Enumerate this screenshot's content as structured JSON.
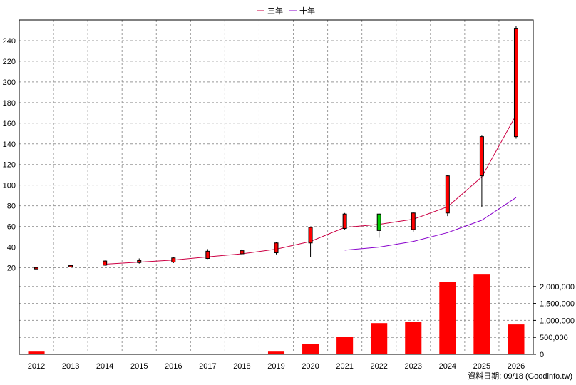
{
  "chart_data": {
    "type": "candlestick+line+bar",
    "legend": {
      "placement": "top-center",
      "items": [
        {
          "label": "三年",
          "color": "#cc0044"
        },
        {
          "label": "十年",
          "color": "#8800cc"
        }
      ]
    },
    "years": [
      "2012",
      "2013",
      "2014",
      "2015",
      "2016",
      "2017",
      "2018",
      "2019",
      "2020",
      "2021",
      "2022",
      "2023",
      "2024",
      "2025",
      "2026"
    ],
    "price_axis": {
      "ylim": [
        10,
        260
      ],
      "ticks": [
        20,
        40,
        60,
        80,
        100,
        120,
        140,
        160,
        180,
        200,
        220,
        240
      ]
    },
    "volume_axis": {
      "ylim": [
        0,
        2500000
      ],
      "ticks": [
        0,
        500000,
        1000000,
        1500000,
        2000000
      ],
      "tick_labels": [
        "0",
        "500,000",
        "1,000,000",
        "1,500,000",
        "2,000,000"
      ]
    },
    "candles": [
      {
        "x": "2012",
        "open": 19.5,
        "close": 20.2,
        "high": 20.5,
        "low": 19.0
      },
      {
        "x": "2013",
        "open": 21.5,
        "close": 22.2,
        "high": 22.6,
        "low": 21.0
      },
      {
        "x": "2014",
        "open": 22.5,
        "close": 26.5,
        "high": 27.0,
        "low": 22.0
      },
      {
        "x": "2015",
        "open": 25.0,
        "close": 27.0,
        "high": 29.0,
        "low": 24.0
      },
      {
        "x": "2016",
        "open": 25.5,
        "close": 29.5,
        "high": 30.5,
        "low": 24.5
      },
      {
        "x": "2017",
        "open": 29.0,
        "close": 36.0,
        "high": 38.0,
        "low": 28.5
      },
      {
        "x": "2018",
        "open": 33.5,
        "close": 36.5,
        "high": 38.0,
        "low": 32.0
      },
      {
        "x": "2019",
        "open": 34.5,
        "close": 44.0,
        "high": 44.5,
        "low": 33.0
      },
      {
        "x": "2020",
        "open": 44.0,
        "close": 59.0,
        "high": 59.5,
        "low": 30.5
      },
      {
        "x": "2021",
        "open": 58.0,
        "close": 72.0,
        "high": 73.0,
        "low": 57.0
      },
      {
        "x": "2022",
        "open": 72.0,
        "close": 56.0,
        "high": 72.5,
        "low": 49.0
      },
      {
        "x": "2023",
        "open": 57.0,
        "close": 73.0,
        "high": 73.5,
        "low": 55.0
      },
      {
        "x": "2024",
        "open": 73.0,
        "close": 109.0,
        "high": 110.0,
        "low": 70.0
      },
      {
        "x": "2025",
        "open": 109.0,
        "close": 147.0,
        "high": 148.0,
        "low": 79.0
      },
      {
        "x": "2026",
        "open": 147.0,
        "close": 252.0,
        "high": 254.0,
        "low": 145.0
      }
    ],
    "series": [
      {
        "name": "三年",
        "x": [
          "2014",
          "2015",
          "2016",
          "2017",
          "2018",
          "2019",
          "2020",
          "2021",
          "2022",
          "2023",
          "2024",
          "2025",
          "2026"
        ],
        "values": [
          23.5,
          25.5,
          27.5,
          30.5,
          33.5,
          38.0,
          45.5,
          59.0,
          62.0,
          67.0,
          79.0,
          108.0,
          168.0
        ]
      },
      {
        "name": "十年",
        "x": [
          "2021",
          "2022",
          "2023",
          "2024",
          "2025",
          "2026"
        ],
        "values": [
          37.0,
          40.0,
          45.5,
          54.0,
          66.0,
          88.0
        ]
      }
    ],
    "volume": [
      {
        "x": "2012",
        "value": 80000
      },
      {
        "x": "2013",
        "value": 0
      },
      {
        "x": "2014",
        "value": 0
      },
      {
        "x": "2015",
        "value": 0
      },
      {
        "x": "2016",
        "value": 0
      },
      {
        "x": "2017",
        "value": 0
      },
      {
        "x": "2018",
        "value": 20000
      },
      {
        "x": "2019",
        "value": 80000
      },
      {
        "x": "2020",
        "value": 310000
      },
      {
        "x": "2021",
        "value": 520000
      },
      {
        "x": "2022",
        "value": 920000
      },
      {
        "x": "2023",
        "value": 950000
      },
      {
        "x": "2024",
        "value": 2130000
      },
      {
        "x": "2025",
        "value": 2350000
      },
      {
        "x": "2026",
        "value": 880000
      }
    ],
    "colors": {
      "up": "#ff0000",
      "down": "#00cc00",
      "bar": "#ff0000",
      "grid": "#999999"
    },
    "grid": true
  },
  "footer": {
    "source_label": "資料日期: 09/18 (Goodinfo.tw)"
  }
}
